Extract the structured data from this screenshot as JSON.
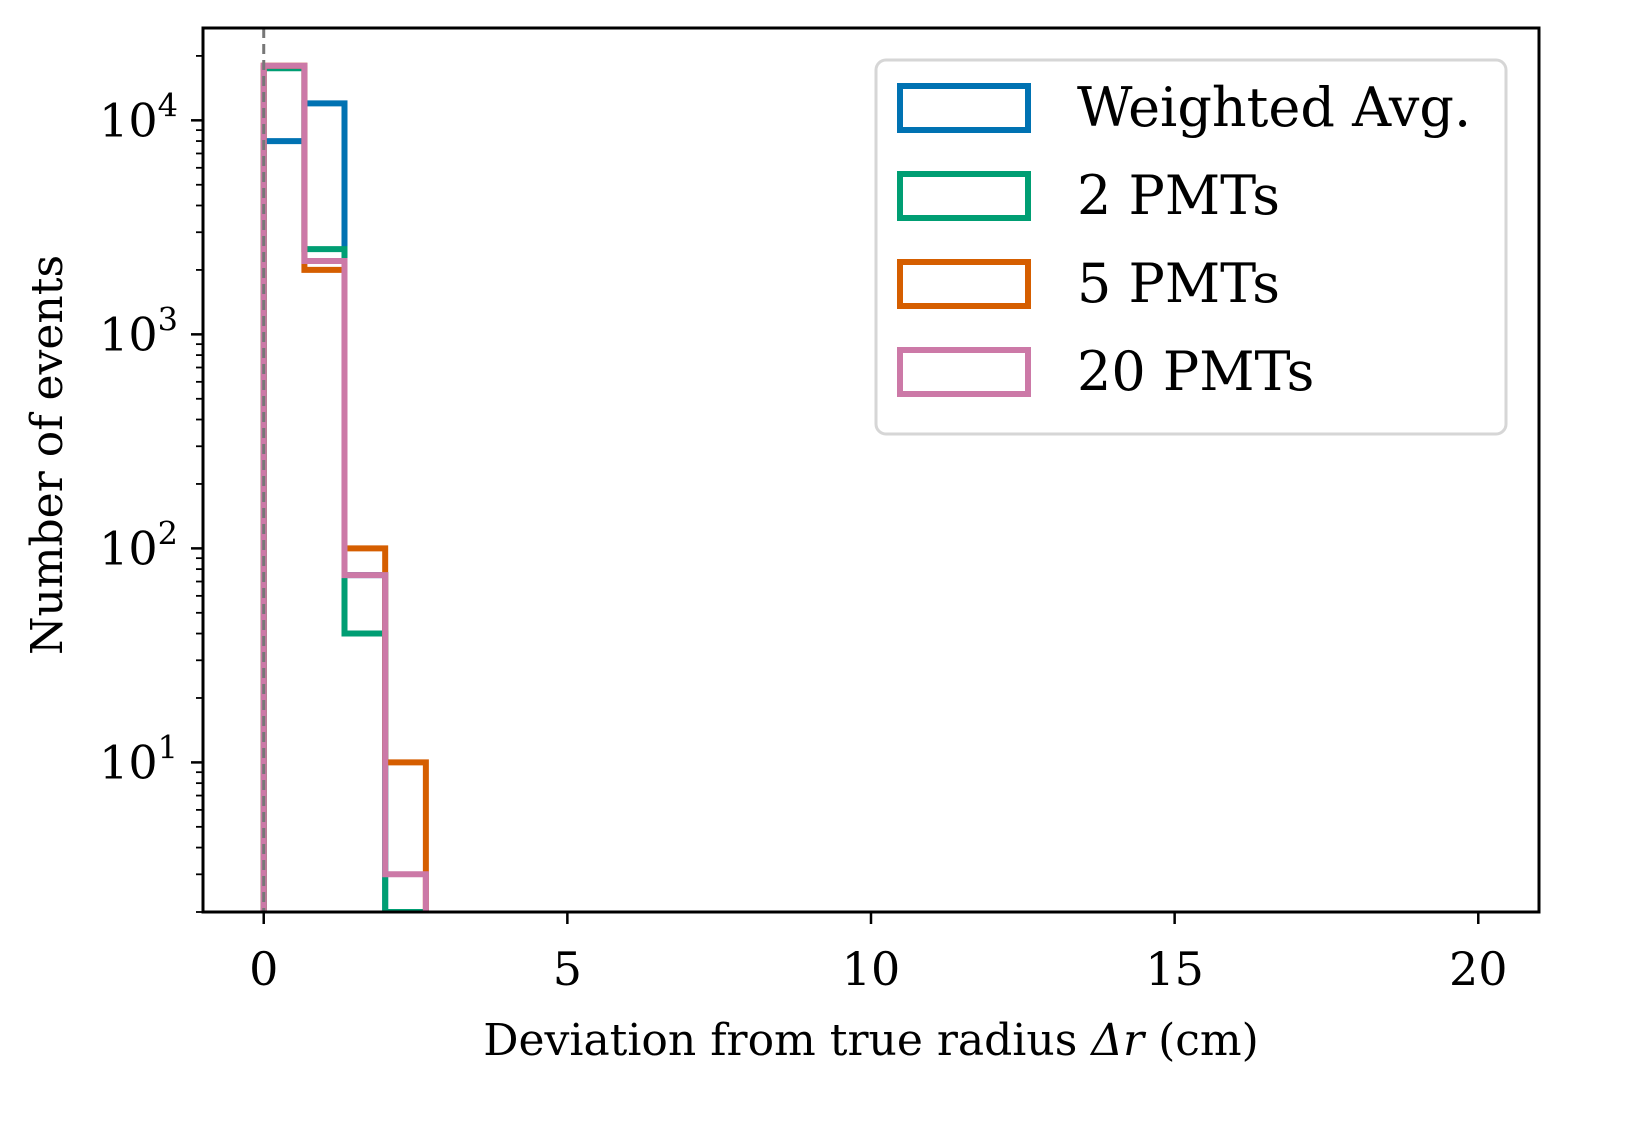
{
  "chart_data": {
    "type": "histogram",
    "title": "",
    "xlabel": "Deviation from true radius",
    "xlabel_symbol": "Δr",
    "xlabel_unit": "(cm)",
    "ylabel": "Number of events",
    "xlim": [
      -1,
      21
    ],
    "ylim": [
      2,
      27000
    ],
    "yscale": "log",
    "grid": false,
    "legend_position": "top-right",
    "x_ticks": [
      0,
      5,
      10,
      15,
      20
    ],
    "x_tick_labels": [
      "0",
      "5",
      "10",
      "15",
      "20"
    ],
    "y_ticks": [
      10,
      100,
      1000,
      10000
    ],
    "y_tick_base": "10",
    "y_tick_exponents": [
      "1",
      "2",
      "3",
      "4"
    ],
    "bin_edges": [
      0,
      0.67,
      1.33,
      2.0,
      2.67
    ],
    "reference_line": {
      "x": 0,
      "style": "dashed",
      "color": "#777777"
    },
    "series": [
      {
        "name": "Weighted Avg.",
        "color": "#0072B2",
        "values": [
          8000,
          12000,
          75,
          2
        ]
      },
      {
        "name": "2 PMTs",
        "color": "#009E73",
        "values": [
          17500,
          2500,
          40,
          2
        ]
      },
      {
        "name": "5 PMTs",
        "color": "#D55E00",
        "values": [
          18000,
          2000,
          100,
          10
        ]
      },
      {
        "name": "20 PMTs",
        "color": "#CC79A7",
        "values": [
          18000,
          2200,
          75,
          3
        ]
      }
    ]
  }
}
